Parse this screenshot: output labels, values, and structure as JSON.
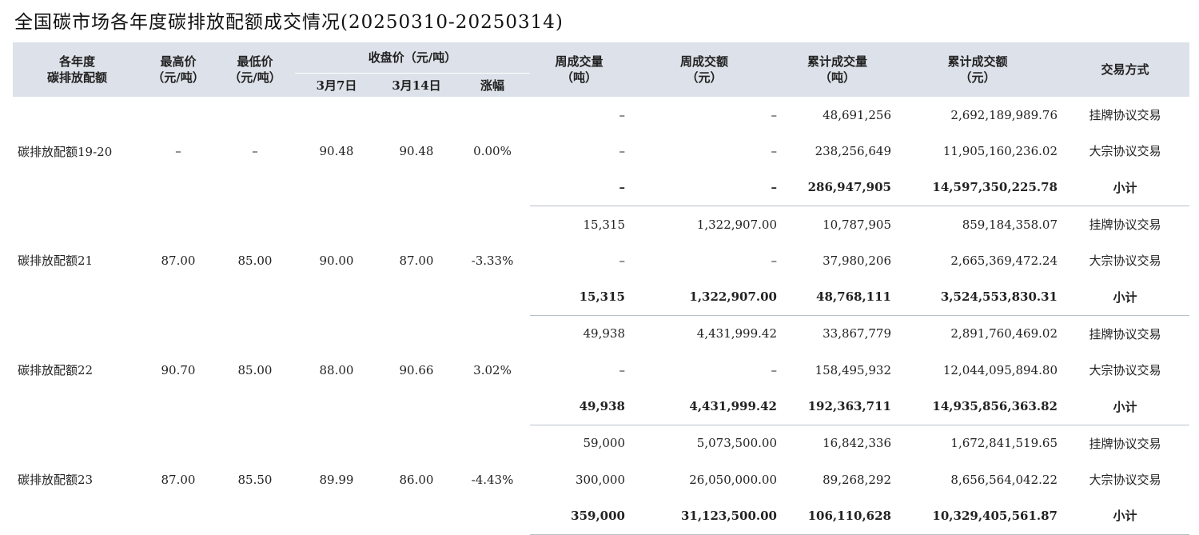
{
  "title": "全国碳市场各年度碳排放配额成交情况(20250310-20250314)",
  "header": {
    "allowance_l1": "各年度",
    "allowance_l2": "碳排放配额",
    "high_l1": "最高价",
    "high_l2": "（元/吨）",
    "low_l1": "最低价",
    "low_l2": "（元/吨）",
    "close_group": "收盘价（元/吨）",
    "close_mar7": "3月7日",
    "close_mar14": "3月14日",
    "change": "涨幅",
    "weekly_vol_l1": "周成交量",
    "weekly_vol_l2": "（吨）",
    "weekly_amt_l1": "周成交额",
    "weekly_amt_l2": "（元）",
    "cum_vol_l1": "累计成交量",
    "cum_vol_l2": "（吨）",
    "cum_amt_l1": "累计成交额",
    "cum_amt_l2": "（元）",
    "method": "交易方式"
  },
  "groups": [
    {
      "name": "碳排放配额19-20",
      "high": "–",
      "low": "–",
      "close_mar7": "90.48",
      "close_mar14": "90.48",
      "change": "0.00%",
      "rows": [
        {
          "weekly_vol": "–",
          "weekly_amt": "–",
          "cum_vol": "48,691,256",
          "cum_amt": "2,692,189,989.76",
          "method": "挂牌协议交易"
        },
        {
          "weekly_vol": "–",
          "weekly_amt": "–",
          "cum_vol": "238,256,649",
          "cum_amt": "11,905,160,236.02",
          "method": "大宗协议交易"
        },
        {
          "weekly_vol": "–",
          "weekly_amt": "–",
          "cum_vol": "286,947,905",
          "cum_amt": "14,597,350,225.78",
          "method": "小计"
        }
      ]
    },
    {
      "name": "碳排放配额21",
      "high": "87.00",
      "low": "85.00",
      "close_mar7": "90.00",
      "close_mar14": "87.00",
      "change": "-3.33%",
      "rows": [
        {
          "weekly_vol": "15,315",
          "weekly_amt": "1,322,907.00",
          "cum_vol": "10,787,905",
          "cum_amt": "859,184,358.07",
          "method": "挂牌协议交易"
        },
        {
          "weekly_vol": "–",
          "weekly_amt": "–",
          "cum_vol": "37,980,206",
          "cum_amt": "2,665,369,472.24",
          "method": "大宗协议交易"
        },
        {
          "weekly_vol": "15,315",
          "weekly_amt": "1,322,907.00",
          "cum_vol": "48,768,111",
          "cum_amt": "3,524,553,830.31",
          "method": "小计"
        }
      ]
    },
    {
      "name": "碳排放配额22",
      "high": "90.70",
      "low": "85.00",
      "close_mar7": "88.00",
      "close_mar14": "90.66",
      "change": "3.02%",
      "rows": [
        {
          "weekly_vol": "49,938",
          "weekly_amt": "4,431,999.42",
          "cum_vol": "33,867,779",
          "cum_amt": "2,891,760,469.02",
          "method": "挂牌协议交易"
        },
        {
          "weekly_vol": "–",
          "weekly_amt": "–",
          "cum_vol": "158,495,932",
          "cum_amt": "12,044,095,894.80",
          "method": "大宗协议交易"
        },
        {
          "weekly_vol": "49,938",
          "weekly_amt": "4,431,999.42",
          "cum_vol": "192,363,711",
          "cum_amt": "14,935,856,363.82",
          "method": "小计"
        }
      ]
    },
    {
      "name": "碳排放配额23",
      "high": "87.00",
      "low": "85.50",
      "close_mar7": "89.99",
      "close_mar14": "86.00",
      "change": "-4.43%",
      "rows": [
        {
          "weekly_vol": "59,000",
          "weekly_amt": "5,073,500.00",
          "cum_vol": "16,842,336",
          "cum_amt": "1,672,841,519.65",
          "method": "挂牌协议交易"
        },
        {
          "weekly_vol": "300,000",
          "weekly_amt": "26,050,000.00",
          "cum_vol": "89,268,292",
          "cum_amt": "8,656,564,042.22",
          "method": "大宗协议交易"
        },
        {
          "weekly_vol": "359,000",
          "weekly_amt": "31,123,500.00",
          "cum_vol": "106,110,628",
          "cum_amt": "10,329,405,561.87",
          "method": "小计"
        }
      ]
    }
  ]
}
